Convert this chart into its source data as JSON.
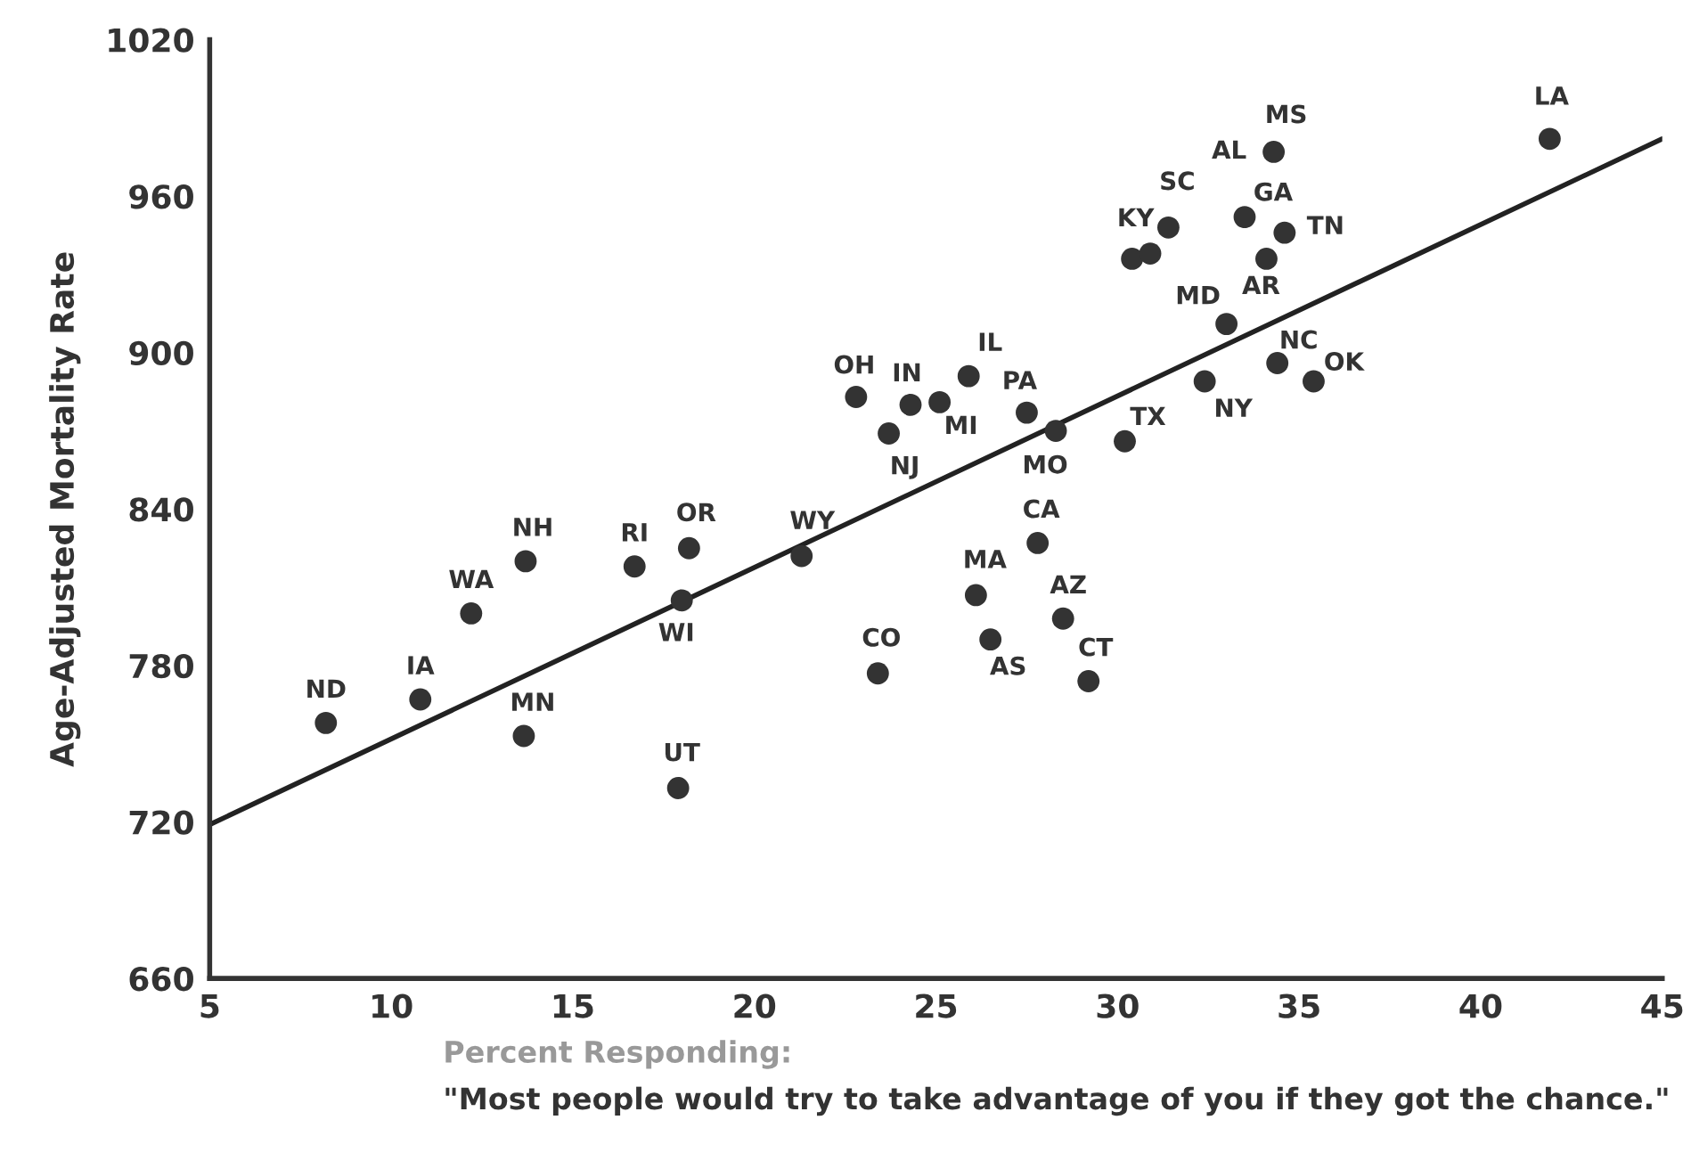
{
  "chart_data": {
    "type": "scatter",
    "ylabel": "Age-Adjusted Mortality Rate",
    "xlabel": "Percent Responding:",
    "xlim": [
      5,
      45
    ],
    "xticks": [
      5,
      10,
      15,
      20,
      25,
      30,
      35,
      40,
      45
    ],
    "ylim": [
      660,
      1020
    ],
    "yticks": [
      660,
      720,
      780,
      840,
      900,
      960,
      1020
    ],
    "grid": false,
    "series": [
      {
        "marker": "circle",
        "color": "#333333",
        "x": [
          8.2,
          10.8,
          12.2,
          13.7,
          13.65,
          16.7,
          18.2,
          18.0,
          17.9,
          21.3,
          23.4,
          22.8,
          24.3,
          23.7,
          25.1,
          25.9,
          27.5,
          28.3,
          30.2,
          27.8,
          26.1,
          26.5,
          28.5,
          29.2,
          30.4,
          30.9,
          31.4,
          33.0,
          32.4,
          34.3,
          33.5,
          34.6,
          34.1,
          34.4,
          35.4,
          41.9
        ],
        "values": [
          758,
          767,
          800,
          820,
          753,
          818,
          825,
          805,
          733,
          822,
          777,
          883,
          880,
          869,
          881,
          891,
          877,
          870,
          866,
          827,
          807,
          790,
          798,
          774,
          936,
          938,
          948,
          911,
          889,
          977,
          952,
          946,
          936,
          896,
          889,
          982
        ]
      },
      {
        "type": "line",
        "marker": "none",
        "color": "#222222",
        "x": [
          5,
          45
        ],
        "values": [
          719,
          982
        ]
      }
    ],
    "annotations": [
      {
        "text": "ND",
        "x": 8.2,
        "y": 758
      },
      {
        "text": "IA",
        "x": 10.8,
        "y": 767
      },
      {
        "text": "WA",
        "x": 12.2,
        "y": 800
      },
      {
        "text": "NH",
        "x": 13.7,
        "y": 820
      },
      {
        "text": "MN",
        "x": 13.65,
        "y": 753
      },
      {
        "text": "RI",
        "x": 16.7,
        "y": 818
      },
      {
        "text": "OR",
        "x": 18.2,
        "y": 825
      },
      {
        "text": "WI",
        "x": 18.0,
        "y": 805
      },
      {
        "text": "UT",
        "x": 17.9,
        "y": 733
      },
      {
        "text": "WY",
        "x": 21.3,
        "y": 822
      },
      {
        "text": "CO",
        "x": 23.4,
        "y": 777
      },
      {
        "text": "OH",
        "x": 22.8,
        "y": 883
      },
      {
        "text": "IN",
        "x": 24.3,
        "y": 880
      },
      {
        "text": "NJ",
        "x": 23.7,
        "y": 869
      },
      {
        "text": "MI",
        "x": 25.1,
        "y": 881
      },
      {
        "text": "IL",
        "x": 25.9,
        "y": 891
      },
      {
        "text": "PA",
        "x": 27.5,
        "y": 877
      },
      {
        "text": "MO",
        "x": 28.3,
        "y": 870
      },
      {
        "text": "TX",
        "x": 30.2,
        "y": 866
      },
      {
        "text": "CA",
        "x": 27.8,
        "y": 827
      },
      {
        "text": "MA",
        "x": 26.1,
        "y": 807
      },
      {
        "text": "AS",
        "x": 26.5,
        "y": 790
      },
      {
        "text": "AZ",
        "x": 28.5,
        "y": 798
      },
      {
        "text": "CT",
        "x": 29.2,
        "y": 774
      },
      {
        "text": "KY",
        "x": 30.4,
        "y": 936
      },
      {
        "text": "SC",
        "x": 31.4,
        "y": 948
      },
      {
        "text": "MD",
        "x": 33.0,
        "y": 911
      },
      {
        "text": "NY",
        "x": 32.4,
        "y": 889
      },
      {
        "text": "AL",
        "x": 34.3,
        "y": 977
      },
      {
        "text": "MS",
        "x": 34.3,
        "y": 977
      },
      {
        "text": "GA",
        "x": 33.5,
        "y": 952
      },
      {
        "text": "TN",
        "x": 34.6,
        "y": 946
      },
      {
        "text": "AR",
        "x": 34.1,
        "y": 936
      },
      {
        "text": "NC",
        "x": 34.4,
        "y": 896
      },
      {
        "text": "OK",
        "x": 35.4,
        "y": 889
      },
      {
        "text": "LA",
        "x": 41.9,
        "y": 982
      },
      "\"Most people would try to take advantage of you if they got the chance.\""
    ]
  }
}
